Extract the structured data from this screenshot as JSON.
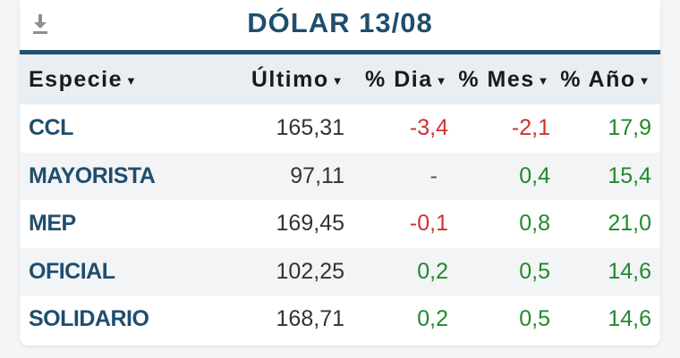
{
  "widget": {
    "title": "DÓLAR 13/08",
    "download_icon": "download-icon"
  },
  "table": {
    "headers": [
      "Especie",
      "Último",
      "% Dia",
      "% Mes",
      "% Año"
    ],
    "sort_icon": "caret-down-icon",
    "rows": [
      {
        "especie": "CCL",
        "ultimo": "165,31",
        "dia": "-3,4",
        "mes": "-2,1",
        "anio": "17,9"
      },
      {
        "especie": "MAYORISTA",
        "ultimo": "97,11",
        "dia": "-",
        "mes": "0,4",
        "anio": "15,4"
      },
      {
        "especie": "MEP",
        "ultimo": "169,45",
        "dia": "-0,1",
        "mes": "0,8",
        "anio": "21,0"
      },
      {
        "especie": "OFICIAL",
        "ultimo": "102,25",
        "dia": "0,2",
        "mes": "0,5",
        "anio": "14,6"
      },
      {
        "especie": "SOLIDARIO",
        "ultimo": "168,71",
        "dia": "0,2",
        "mes": "0,5",
        "anio": "14,6"
      }
    ]
  },
  "colors": {
    "title": "#1f4e6e",
    "negative": "#d0312d",
    "positive": "#1f8a2a",
    "header_bg": "#e9eef2"
  }
}
